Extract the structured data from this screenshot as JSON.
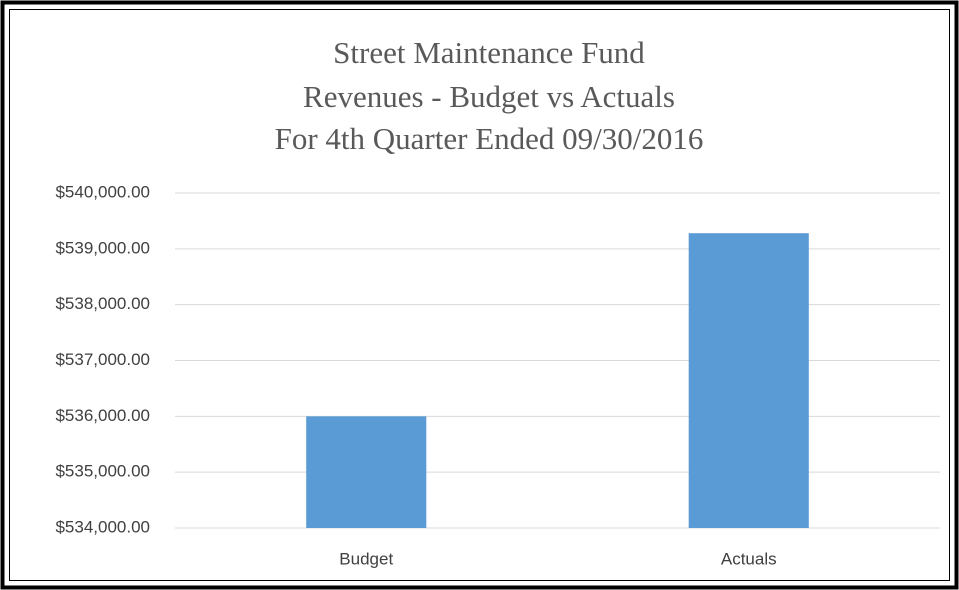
{
  "chart_data": {
    "type": "bar",
    "title": [
      "Street Maintenance Fund",
      "Revenues - Budget vs Actuals",
      "For 4th Quarter Ended 09/30/2016"
    ],
    "categories": [
      "Budget",
      "Actuals"
    ],
    "values": [
      536000,
      539280
    ],
    "color": "#5b9bd5",
    "ylim": [
      534000,
      540000
    ],
    "yticks": [
      {
        "value": 534000,
        "label": "$534,000.00"
      },
      {
        "value": 535000,
        "label": "$535,000.00"
      },
      {
        "value": 536000,
        "label": "$536,000.00"
      },
      {
        "value": 537000,
        "label": "$537,000.00"
      },
      {
        "value": 538000,
        "label": "$538,000.00"
      },
      {
        "value": 539000,
        "label": "$539,000.00"
      },
      {
        "value": 540000,
        "label": "$540,000.00"
      }
    ],
    "grid": true
  }
}
